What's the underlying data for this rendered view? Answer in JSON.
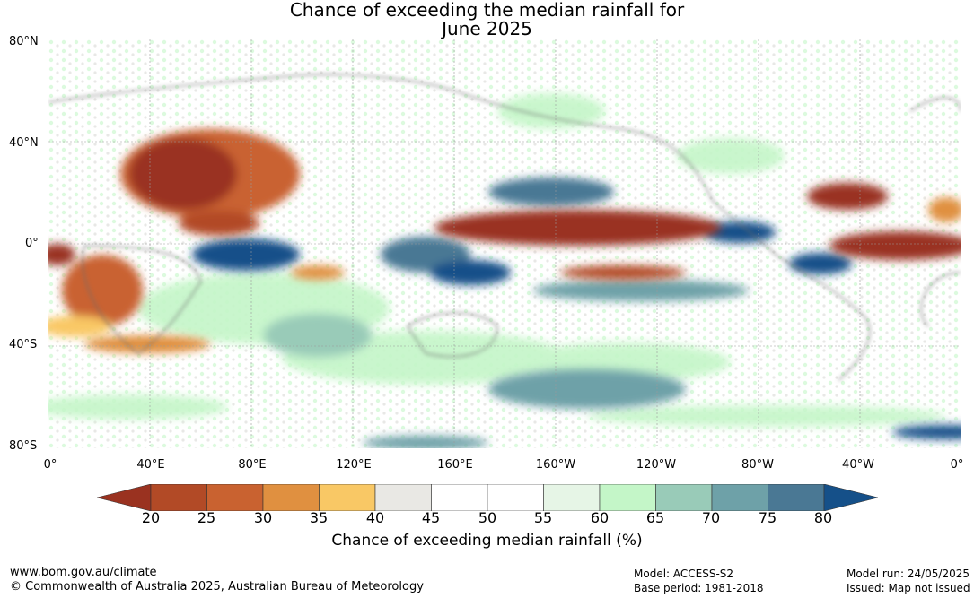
{
  "title": {
    "line1": "Chance of exceeding the median rainfall for",
    "line2": "June 2025"
  },
  "lat_labels": [
    "80°N",
    "40°N",
    "0°",
    "40°S",
    "80°S"
  ],
  "lon_labels": [
    "0°",
    "40°E",
    "80°E",
    "120°E",
    "160°E",
    "160°W",
    "120°W",
    "80°W",
    "40°W",
    "0°"
  ],
  "colorbar": {
    "ticks": [
      "20",
      "25",
      "30",
      "35",
      "40",
      "45",
      "50",
      "55",
      "60",
      "65",
      "70",
      "75",
      "80"
    ],
    "colors": [
      "#9a3220",
      "#b24a26",
      "#c96230",
      "#e09040",
      "#f9c865",
      "#e9e8e4",
      "#ffffff",
      "#ffffff",
      "#e6f5e6",
      "#c4f6c8",
      "#99cbb8",
      "#6ea1a8",
      "#4a7894",
      "#155089"
    ],
    "label": "Chance of exceeding median rainfall (%)"
  },
  "footer": {
    "website": "www.bom.gov.au/climate",
    "copyright": "© Commonwealth of Australia 2025, Australian Bureau of Meteorology",
    "model": "Model: ACCESS-S2",
    "base_period": "Base period: 1981-2018",
    "model_run": "Model run: 24/05/2025",
    "issued": "Issued: Map not issued"
  }
}
